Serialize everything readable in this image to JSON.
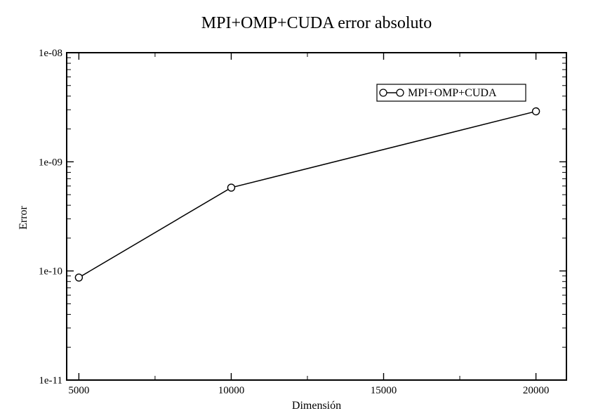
{
  "chart_data": {
    "type": "line",
    "title": "MPI+OMP+CUDA error absoluto",
    "xlabel": "Dimensión",
    "ylabel": "Error",
    "xlim": [
      4600,
      21000
    ],
    "ylim": [
      1e-11,
      1e-08
    ],
    "yscale": "log",
    "xticks": [
      5000,
      10000,
      15000,
      20000
    ],
    "xtick_labels": [
      "5000",
      "10000",
      "15000",
      "20000"
    ],
    "yticks": [
      1e-11,
      1e-10,
      1e-09,
      1e-08
    ],
    "ytick_labels": [
      "1e-11",
      "1e-10",
      "1e-09",
      "1e-08"
    ],
    "grid": false,
    "legend_position": "top-right",
    "series": [
      {
        "name": "MPI+OMP+CUDA",
        "color": "#000000",
        "marker": "open-circle",
        "x": [
          5000,
          10000,
          20000
        ],
        "y": [
          8.7e-11,
          5.8e-10,
          2.9e-09
        ]
      }
    ]
  }
}
